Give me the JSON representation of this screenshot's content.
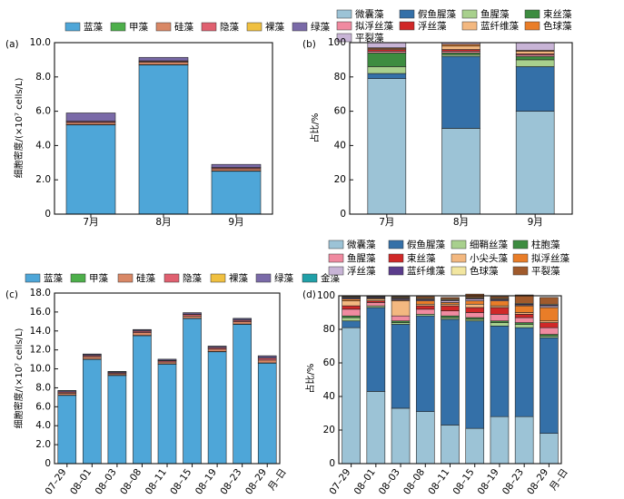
{
  "chart_data": [
    {
      "panel": "(a)",
      "type": "bar",
      "stacked": true,
      "ylabel": "细胞密度/(×10⁷ cells/L)",
      "ylim": [
        0,
        10
      ],
      "yticks": [
        "0",
        "2.0",
        "4.0",
        "6.0",
        "8.0",
        "10.0"
      ],
      "categories": [
        "7月",
        "8月",
        "9月"
      ],
      "legend": [
        "蓝藻",
        "甲藻",
        "硅藻",
        "隐藻",
        "裸藻",
        "绿藻"
      ],
      "series": [
        {
          "name": "蓝藻",
          "color": "#4ea6d8",
          "values": [
            5.2,
            8.7,
            2.5
          ]
        },
        {
          "name": "甲藻",
          "color": "#4daf4a",
          "values": [
            0.02,
            0.02,
            0.02
          ]
        },
        {
          "name": "硅藻",
          "color": "#d98866",
          "values": [
            0.12,
            0.15,
            0.12
          ]
        },
        {
          "name": "隐藻",
          "color": "#e06070",
          "values": [
            0.06,
            0.05,
            0.06
          ]
        },
        {
          "name": "裸藻",
          "color": "#f0c040",
          "values": [
            0.02,
            0.02,
            0.02
          ]
        },
        {
          "name": "绿藻",
          "color": "#7a6aa8",
          "values": [
            0.48,
            0.2,
            0.18
          ]
        }
      ]
    },
    {
      "panel": "(b)",
      "type": "bar",
      "stacked": true,
      "ylabel": "占比/%",
      "ylim": [
        0,
        100
      ],
      "yticks": [
        "0",
        "20",
        "40",
        "60",
        "80",
        "100"
      ],
      "categories": [
        "7月",
        "8月",
        "9月"
      ],
      "legend": [
        "微囊藻",
        "假鱼腥藻",
        "鱼腥藻",
        "束丝藻",
        "拟浮丝藻",
        "浮丝藻",
        "蓝纤维藻",
        "色球藻",
        "平裂藻"
      ],
      "series": [
        {
          "name": "微囊藻",
          "color": "#9cc3d6",
          "values": [
            79,
            50,
            60
          ]
        },
        {
          "name": "假鱼腥藻",
          "color": "#3470a8",
          "values": [
            3,
            42,
            26
          ]
        },
        {
          "name": "鱼腥藻",
          "color": "#a8d08d",
          "values": [
            4,
            1,
            4
          ]
        },
        {
          "name": "束丝藻",
          "color": "#3d8c40",
          "values": [
            8,
            1,
            2
          ]
        },
        {
          "name": "拟浮丝藻",
          "color": "#f08aa0",
          "values": [
            1,
            1,
            1
          ]
        },
        {
          "name": "浮丝藻",
          "color": "#d02828",
          "values": [
            1,
            1,
            0.5
          ]
        },
        {
          "name": "蓝纤维藻",
          "color": "#f3b880",
          "values": [
            0.5,
            2,
            1.5
          ]
        },
        {
          "name": "色球藻",
          "color": "#e97d28",
          "values": [
            0.5,
            1,
            0.5
          ]
        },
        {
          "name": "平裂藻",
          "color": "#c8b4d6",
          "values": [
            3,
            1,
            4.5
          ]
        }
      ]
    },
    {
      "panel": "(c)",
      "type": "bar",
      "stacked": true,
      "ylabel": "细胞密度/(×10⁷ cells/L)",
      "ylim": [
        0,
        18
      ],
      "yticks": [
        "0",
        "2.0",
        "4.0",
        "6.0",
        "8.0",
        "10.0",
        "12.0",
        "14.0",
        "16.0",
        "18.0"
      ],
      "categories": [
        "07–29",
        "08–01",
        "08–03",
        "08–08",
        "08–11",
        "08–15",
        "08–19",
        "08–23",
        "08–29"
      ],
      "xlabel": "月–日",
      "legend": [
        "蓝藻",
        "甲藻",
        "硅藻",
        "隐藻",
        "裸藻",
        "绿藻",
        "金藻"
      ],
      "series": [
        {
          "name": "蓝藻",
          "color": "#4ea6d8",
          "values": [
            7.2,
            11.0,
            9.3,
            13.5,
            10.5,
            15.3,
            11.8,
            14.7,
            10.6
          ]
        },
        {
          "name": "甲藻",
          "color": "#4daf4a",
          "values": [
            0.03,
            0.03,
            0.03,
            0.03,
            0.03,
            0.03,
            0.03,
            0.03,
            0.03
          ]
        },
        {
          "name": "硅藻",
          "color": "#d98866",
          "values": [
            0.2,
            0.25,
            0.15,
            0.3,
            0.2,
            0.25,
            0.25,
            0.25,
            0.3
          ]
        },
        {
          "name": "隐藻",
          "color": "#e06070",
          "values": [
            0.12,
            0.12,
            0.1,
            0.15,
            0.12,
            0.15,
            0.15,
            0.15,
            0.2
          ]
        },
        {
          "name": "裸藻",
          "color": "#f0c040",
          "values": [
            0.03,
            0.03,
            0.03,
            0.03,
            0.03,
            0.03,
            0.03,
            0.03,
            0.03
          ]
        },
        {
          "name": "绿藻",
          "color": "#7a6aa8",
          "values": [
            0.12,
            0.12,
            0.1,
            0.12,
            0.12,
            0.15,
            0.12,
            0.15,
            0.2
          ]
        },
        {
          "name": "金藻",
          "color": "#20a0a8",
          "values": [
            0.02,
            0.02,
            0.02,
            0.02,
            0.02,
            0.02,
            0.02,
            0.02,
            0.02
          ]
        }
      ]
    },
    {
      "panel": "(d)",
      "type": "bar",
      "stacked": true,
      "ylabel": "占比/%",
      "ylim": [
        0,
        100
      ],
      "yticks": [
        "0",
        "20",
        "40",
        "60",
        "80",
        "100"
      ],
      "categories": [
        "07–29",
        "08–01",
        "08–03",
        "08–08",
        "08–11",
        "08–15",
        "08–19",
        "08–23",
        "08–29"
      ],
      "xlabel": "月–日",
      "legend": [
        "微囊藻",
        "假鱼腥藻",
        "细鞘丝藻",
        "柱胞藻",
        "鱼腥藻",
        "束丝藻",
        "小尖头藻",
        "拟浮丝藻",
        "浮丝藻",
        "蓝纤维藻",
        "色球藻",
        "平裂藻"
      ],
      "series": [
        {
          "name": "微囊藻",
          "color": "#9cc3d6",
          "values": [
            81,
            43,
            33,
            31,
            23,
            21,
            28,
            28,
            18
          ]
        },
        {
          "name": "假鱼腥藻",
          "color": "#3470a8",
          "values": [
            4,
            50,
            50,
            57,
            63,
            64,
            54,
            53,
            57
          ]
        },
        {
          "name": "细鞘丝藻",
          "color": "#a8d08d",
          "values": [
            2,
            1,
            1,
            1,
            1,
            1,
            2,
            2,
            1
          ]
        },
        {
          "name": "柱胞藻",
          "color": "#3d8c40",
          "values": [
            1,
            0,
            1,
            0,
            1,
            1,
            1,
            1,
            1
          ]
        },
        {
          "name": "鱼腥藻",
          "color": "#f08aa0",
          "values": [
            4,
            2,
            3,
            3,
            3,
            3,
            4,
            3,
            4
          ]
        },
        {
          "name": "束丝藻",
          "color": "#d02828",
          "values": [
            2,
            1,
            0,
            2,
            3,
            3,
            4,
            2,
            3
          ]
        },
        {
          "name": "小尖头藻",
          "color": "#f3b880",
          "values": [
            3,
            1,
            9,
            1,
            1,
            2,
            1,
            1,
            1
          ]
        },
        {
          "name": "拟浮丝藻",
          "color": "#e97d28",
          "values": [
            1,
            0.5,
            0.5,
            2,
            1,
            2,
            3,
            4,
            8
          ]
        },
        {
          "name": "浮丝藻",
          "color": "#c8b4d6",
          "values": [
            0.5,
            0.5,
            0.5,
            0.5,
            1,
            1,
            0.5,
            0.5,
            1
          ]
        },
        {
          "name": "蓝纤维藻",
          "color": "#5b3c8c",
          "values": [
            0.5,
            0.5,
            0.5,
            0.5,
            0.5,
            0.5,
            0.5,
            0.5,
            0.5
          ]
        },
        {
          "name": "色球藻",
          "color": "#f2e6a0",
          "values": [
            0.5,
            0.5,
            0.5,
            0.5,
            0.5,
            0.5,
            0.5,
            0.5,
            0.5
          ]
        },
        {
          "name": "平裂藻",
          "color": "#a05a2c",
          "values": [
            0.5,
            0,
            0.5,
            1,
            1,
            2,
            1,
            5,
            4
          ]
        }
      ]
    }
  ]
}
